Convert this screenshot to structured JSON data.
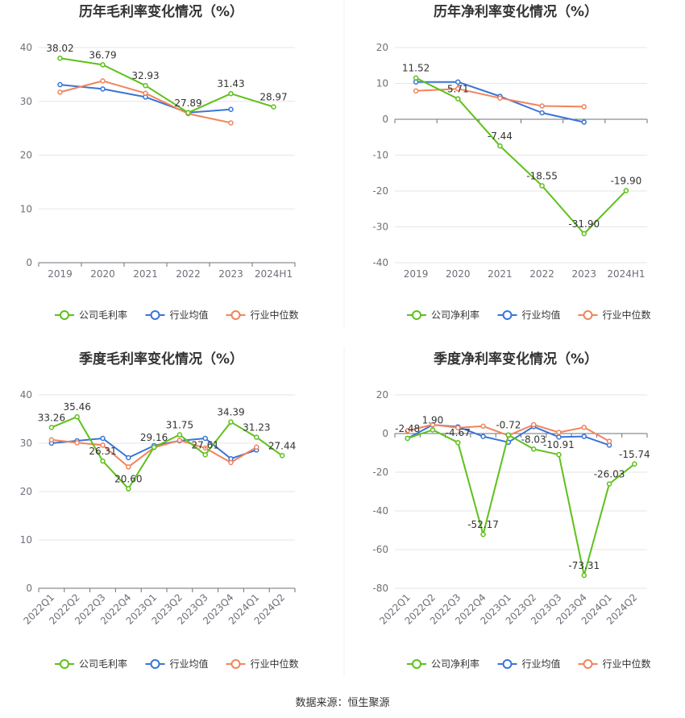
{
  "source_label": "数据来源：恒生聚源",
  "colors": {
    "company": "#5dc11a",
    "industry_avg": "#3a74d9",
    "industry_median": "#f0845c",
    "grid": "#e6e6e6",
    "axis": "#6e7079"
  },
  "chart_data": [
    {
      "type": "line",
      "title": "历年毛利率变化情况（%）",
      "categories": [
        "2019",
        "2020",
        "2021",
        "2022",
        "2023",
        "2024H1"
      ],
      "ylim": [
        0,
        40
      ],
      "yticks": [
        0,
        10,
        20,
        30,
        40
      ],
      "rotate_x": false,
      "legend_position": "bottom",
      "series": [
        {
          "name": "公司毛利率",
          "role": "company",
          "values": [
            38.02,
            36.79,
            32.93,
            27.89,
            31.43,
            28.97
          ],
          "labels": [
            true,
            true,
            true,
            true,
            true,
            true
          ]
        },
        {
          "name": "行业均值",
          "role": "industry_avg",
          "values": [
            33.1,
            32.3,
            30.8,
            27.9,
            28.5,
            null
          ]
        },
        {
          "name": "行业中位数",
          "role": "industry_median",
          "values": [
            31.7,
            33.8,
            31.5,
            27.7,
            26.0,
            null
          ]
        }
      ],
      "label_texts": [
        "38.02",
        "36.79",
        "32.93",
        "27.89",
        "31.43",
        "28.97"
      ]
    },
    {
      "type": "line",
      "title": "历年净利率变化情况（%）",
      "categories": [
        "2019",
        "2020",
        "2021",
        "2022",
        "2023",
        "2024H1"
      ],
      "ylim": [
        -40,
        20
      ],
      "yticks": [
        -40,
        -30,
        -20,
        -10,
        0,
        10,
        20
      ],
      "rotate_x": false,
      "legend_position": "bottom",
      "series": [
        {
          "name": "公司净利率",
          "role": "company",
          "values": [
            11.52,
            5.71,
            -7.44,
            -18.55,
            -31.9,
            -19.9
          ],
          "labels": [
            true,
            true,
            true,
            true,
            true,
            true
          ]
        },
        {
          "name": "行业均值",
          "role": "industry_avg",
          "values": [
            10.4,
            10.4,
            6.4,
            1.8,
            -0.8,
            null
          ]
        },
        {
          "name": "行业中位数",
          "role": "industry_median",
          "values": [
            7.9,
            8.5,
            5.9,
            3.7,
            3.5,
            null
          ]
        }
      ],
      "label_texts": [
        "11.52",
        "5.71",
        "-7.44",
        "-18.55",
        "-31.90",
        "-19.90"
      ]
    },
    {
      "type": "line",
      "title": "季度毛利率变化情况（%）",
      "categories": [
        "2022Q1",
        "2022Q2",
        "2022Q3",
        "2022Q4",
        "2023Q1",
        "2023Q2",
        "2023Q3",
        "2023Q4",
        "2024Q1",
        "2024Q2"
      ],
      "ylim": [
        0,
        40
      ],
      "yticks": [
        0,
        10,
        20,
        30,
        40
      ],
      "rotate_x": true,
      "legend_position": "bottom",
      "series": [
        {
          "name": "公司毛利率",
          "role": "company",
          "values": [
            33.26,
            35.46,
            26.31,
            20.6,
            29.16,
            31.75,
            27.61,
            34.39,
            31.23,
            27.44
          ]
        },
        {
          "name": "行业均值",
          "role": "industry_avg",
          "values": [
            30.0,
            30.5,
            31.0,
            27.0,
            29.5,
            30.5,
            31.0,
            26.8,
            28.6,
            null
          ]
        },
        {
          "name": "行业中位数",
          "role": "industry_median",
          "values": [
            30.7,
            30.1,
            29.6,
            25.1,
            29.1,
            30.6,
            29.0,
            26.0,
            29.2,
            null
          ]
        }
      ],
      "label_texts": [
        "33.26",
        "35.46",
        "26.31",
        "20.60",
        "29.16",
        "31.75",
        "27.61",
        "34.39",
        "31.23",
        "27.44"
      ]
    },
    {
      "type": "line",
      "title": "季度净利率变化情况（%）",
      "categories": [
        "2022Q1",
        "2022Q2",
        "2022Q3",
        "2022Q4",
        "2023Q1",
        "2023Q2",
        "2023Q3",
        "2023Q4",
        "2024Q1",
        "2024Q2"
      ],
      "ylim": [
        -80,
        20
      ],
      "yticks": [
        -80,
        -60,
        -40,
        -20,
        0,
        20
      ],
      "rotate_x": true,
      "legend_position": "bottom",
      "series": [
        {
          "name": "公司净利率",
          "role": "company",
          "values": [
            -2.48,
            1.9,
            -4.67,
            -52.17,
            -0.72,
            -8.03,
            -10.91,
            -73.31,
            -26.03,
            -15.74
          ]
        },
        {
          "name": "行业均值",
          "role": "industry_avg",
          "values": [
            -2.5,
            4.5,
            3.5,
            -1.5,
            -4.5,
            3.6,
            -1.8,
            -1.5,
            -6.0,
            null
          ]
        },
        {
          "name": "行业中位数",
          "role": "industry_median",
          "values": [
            1.5,
            4.6,
            3.0,
            3.8,
            -1.0,
            4.6,
            0.6,
            3.2,
            -4.0,
            null
          ]
        }
      ],
      "label_texts": [
        "-2.48",
        "1.90",
        "-4.67",
        "-52.17",
        "-0.72",
        "-8.03",
        "-10.91",
        "-73.31",
        "-26.03",
        "-15.74"
      ]
    }
  ]
}
